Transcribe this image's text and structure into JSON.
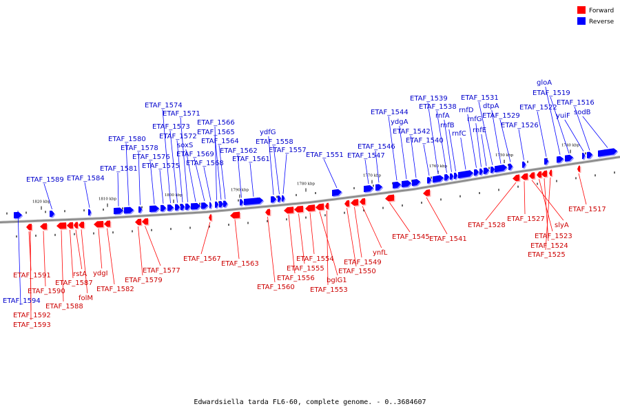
{
  "caption": "Edwardsiella tarda FL6-60, complete genome. - 0..3684607",
  "legend": [
    {
      "label": "Forward",
      "color": "#ff0000"
    },
    {
      "label": "Reverse",
      "color": "#0000ff"
    }
  ],
  "colors": {
    "forward": "#ff0000",
    "reverse": "#0000ff",
    "forward_label": "#cc0000",
    "reverse_label": "#0000cc",
    "backbone": "#888888"
  },
  "scale_ticks": [
    {
      "kbp": 1820,
      "label": "1820 kbp"
    },
    {
      "kbp": 1810,
      "label": "1810 kbp"
    },
    {
      "kbp": 1800,
      "label": "1800 kbp"
    },
    {
      "kbp": 1790,
      "label": "1790 kbp"
    },
    {
      "kbp": 1780,
      "label": "1780 kbp"
    },
    {
      "kbp": 1770,
      "label": "1770 kbp"
    },
    {
      "kbp": 1760,
      "label": "1760 kbp"
    },
    {
      "kbp": 1750,
      "label": "1750 kbp"
    },
    {
      "kbp": 1740,
      "label": "1740 kbp"
    }
  ],
  "reverse_genes": [
    "ETAF_1589",
    "ETAF_1584",
    "ETAF_1581",
    "ETAF_1580",
    "ETAF_1578",
    "ETAF_1576",
    "ETAF_1575",
    "ETAF_1574",
    "ETAF_1573",
    "ETAF_1572",
    "ETAF_1571",
    "soxS",
    "ETAF_1569",
    "ETAF_1568",
    "ETAF_1566",
    "ETAF_1565",
    "ETAF_1564",
    "ETAF_1562",
    "ETAF_1561",
    "ydfG",
    "ETAF_1558",
    "ETAF_1557",
    "ETAF_1551",
    "ETAF_1547",
    "ETAF_1546",
    "ETAF_1544",
    "ydgA",
    "ETAF_1542",
    "ETAF_1540",
    "ETAF_1539",
    "ETAF_1538",
    "rnfA",
    "rnfB",
    "rnfC",
    "rnfD",
    "rnfG",
    "rnfE",
    "ETAF_1531",
    "dtpA",
    "ETAF_1529",
    "ETAF_1526",
    "ETAF_1522",
    "gloA",
    "ETAF_1519",
    "yuiF",
    "ETAF_1516",
    "sodB",
    "ETAF_1594"
  ],
  "forward_genes": [
    "ETAF_1591",
    "ETAF_1590",
    "ETAF_1592",
    "ETAF_1593",
    "ETAF_1588",
    "ETAF_1587",
    "rstA",
    "folM",
    "ydgI",
    "ETAF_1582",
    "ETAF_1579",
    "ETAF_1577",
    "ETAF_1567",
    "ETAF_1563",
    "ETAF_1560",
    "ETAF_1556",
    "ETAF_1555",
    "ETAF_1554",
    "bglG1",
    "ETAF_1553",
    "ETAF_1550",
    "ETAF_1549",
    "ynfL",
    "ETAF_1545",
    "ETAF_1541",
    "ETAF_1528",
    "ETAF_1527",
    "slyA",
    "ETAF_1523",
    "ETAF_1524",
    "ETAF_1525",
    "ETAF_1517"
  ]
}
